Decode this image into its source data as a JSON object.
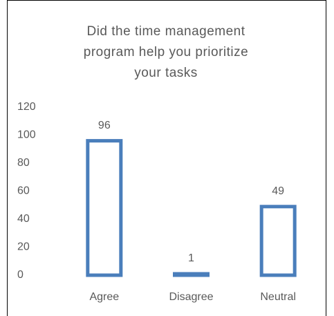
{
  "chart_data": {
    "type": "bar",
    "title": "Did the time management program help you prioritize your tasks",
    "categories": [
      "Agree",
      "Disagree",
      "Neutral"
    ],
    "values": [
      96,
      1,
      49
    ],
    "color": "#4a7ebb",
    "ylim": [
      0,
      120
    ],
    "yticks": [
      0,
      20,
      40,
      60,
      80,
      100,
      120
    ],
    "grid": false
  }
}
